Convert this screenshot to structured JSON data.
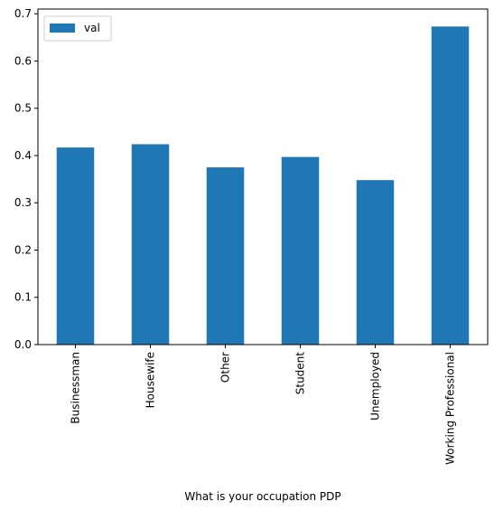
{
  "chart_data": {
    "type": "bar",
    "categories": [
      "Businessman",
      "Housewife",
      "Other",
      "Student",
      "Unemployed",
      "Working Professional"
    ],
    "series": [
      {
        "name": "val",
        "values": [
          0.417,
          0.424,
          0.375,
          0.397,
          0.348,
          0.673
        ],
        "color": "#1f77b4"
      }
    ],
    "xlabel": "What is your occupation PDP",
    "ylabel": "",
    "ylim": [
      0,
      0.71
    ],
    "yticks": [
      0.0,
      0.1,
      0.2,
      0.3,
      0.4,
      0.5,
      0.6,
      0.7
    ],
    "ytick_labels": [
      "0.0",
      "0.1",
      "0.2",
      "0.3",
      "0.4",
      "0.5",
      "0.6",
      "0.7"
    ],
    "grid": false,
    "legend": {
      "placement": "top-left",
      "entries": [
        "val"
      ]
    }
  }
}
